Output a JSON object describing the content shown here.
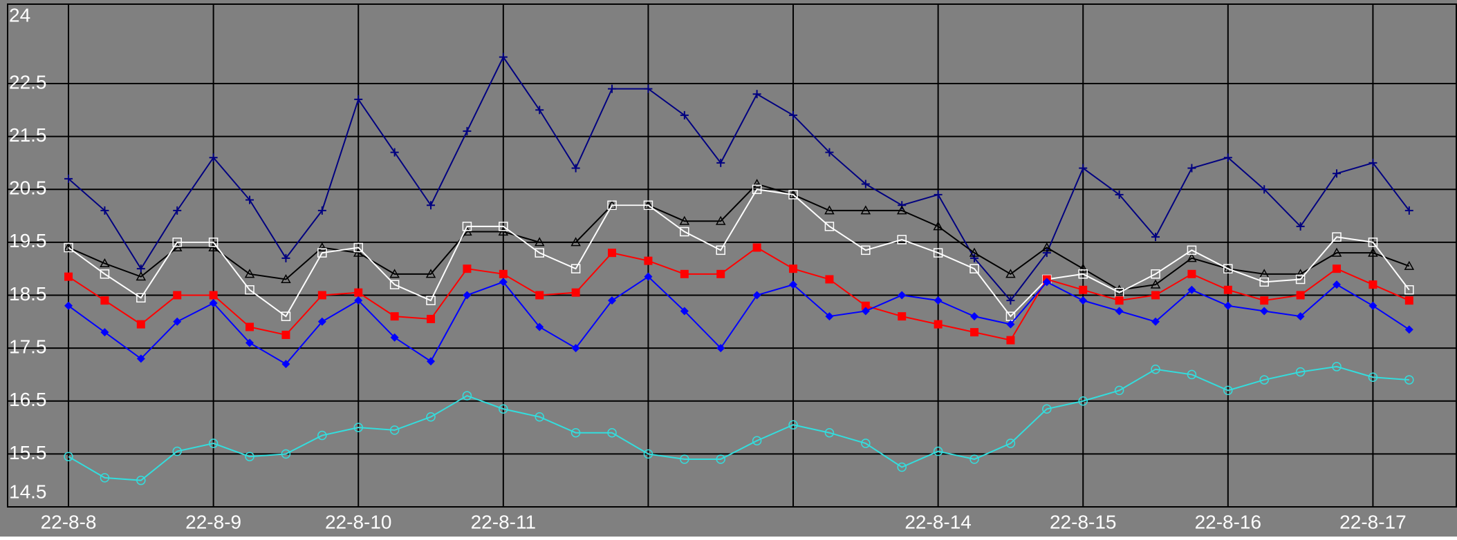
{
  "chart_data": {
    "type": "line",
    "x": [
      0,
      0.25,
      0.5,
      0.75,
      1,
      1.25,
      1.5,
      1.75,
      2,
      2.25,
      2.5,
      2.75,
      3,
      3.25,
      3.5,
      3.75,
      4,
      4.25,
      4.5,
      4.75,
      5,
      5.25,
      5.5,
      5.75,
      6,
      6.25,
      6.5,
      6.75,
      7,
      7.25,
      7.5,
      7.75,
      8,
      8.25,
      8.5,
      8.75,
      9,
      9.25
    ],
    "xlim": [
      -0.42,
      9.58
    ],
    "xticks": [
      {
        "value": 0,
        "label": "22-8-8"
      },
      {
        "value": 1,
        "label": "22-8-9"
      },
      {
        "value": 2,
        "label": "22-8-10"
      },
      {
        "value": 3,
        "label": "22-8-11"
      },
      {
        "value": 4,
        "label": null
      },
      {
        "value": 5,
        "label": null
      },
      {
        "value": 6,
        "label": "22-8-14"
      },
      {
        "value": 7,
        "label": "22-8-15"
      },
      {
        "value": 8,
        "label": "22-8-16"
      },
      {
        "value": 9,
        "label": "22-8-17"
      }
    ],
    "ylim": [
      14.5,
      24
    ],
    "yticks": [
      24,
      22.5,
      21.5,
      20.5,
      19.5,
      18.5,
      17.5,
      16.5,
      15.5,
      14.5
    ],
    "grid": true,
    "series": [
      {
        "color": "#000080",
        "marker": "plus",
        "values": [
          20.7,
          20.1,
          19.0,
          20.1,
          21.1,
          20.3,
          19.2,
          20.1,
          22.2,
          21.2,
          20.2,
          21.6,
          23.0,
          22.0,
          20.9,
          22.4,
          22.4,
          21.9,
          21.0,
          22.3,
          21.9,
          21.2,
          20.6,
          20.2,
          20.4,
          19.2,
          18.4,
          19.3,
          20.9,
          20.4,
          19.6,
          20.9,
          21.1,
          20.5,
          19.8,
          20.8,
          21.0,
          20.1
        ]
      },
      {
        "color": "#000000",
        "marker": "triangle",
        "values": [
          19.4,
          19.1,
          18.85,
          19.4,
          19.4,
          18.9,
          18.8,
          19.4,
          19.3,
          18.9,
          18.9,
          19.7,
          19.7,
          19.5,
          19.5,
          20.2,
          20.2,
          19.9,
          19.9,
          20.6,
          20.4,
          20.1,
          20.1,
          20.1,
          19.8,
          19.3,
          18.9,
          19.4,
          19.0,
          18.6,
          18.7,
          19.2,
          19.0,
          18.9,
          18.9,
          19.3,
          19.3,
          19.05
        ]
      },
      {
        "color": "#ffffff",
        "marker": "square-open",
        "values": [
          19.4,
          18.9,
          18.45,
          19.5,
          19.5,
          18.6,
          18.1,
          19.3,
          19.4,
          18.7,
          18.4,
          19.8,
          19.8,
          19.3,
          19.0,
          20.2,
          20.2,
          19.7,
          19.35,
          20.5,
          20.4,
          19.8,
          19.35,
          19.55,
          19.3,
          19.0,
          18.1,
          18.8,
          18.9,
          18.55,
          18.9,
          19.35,
          19.0,
          18.75,
          18.8,
          19.6,
          19.5,
          18.6
        ]
      },
      {
        "color": "#ff0000",
        "marker": "square",
        "values": [
          18.85,
          18.4,
          17.95,
          18.5,
          18.5,
          17.9,
          17.75,
          18.5,
          18.55,
          18.1,
          18.05,
          19.0,
          18.9,
          18.5,
          18.55,
          19.3,
          19.15,
          18.9,
          18.9,
          19.4,
          19.0,
          18.8,
          18.3,
          18.1,
          17.95,
          17.8,
          17.65,
          18.8,
          18.6,
          18.4,
          18.5,
          18.9,
          18.6,
          18.4,
          18.5,
          19.0,
          18.7,
          18.4
        ]
      },
      {
        "color": "#0000ff",
        "marker": "diamond",
        "values": [
          18.3,
          17.8,
          17.3,
          18.0,
          18.35,
          17.6,
          17.2,
          18.0,
          18.4,
          17.7,
          17.25,
          18.5,
          18.75,
          17.9,
          17.5,
          18.4,
          18.85,
          18.2,
          17.5,
          18.5,
          18.7,
          18.1,
          18.2,
          18.5,
          18.4,
          18.1,
          17.95,
          18.75,
          18.4,
          18.2,
          18.0,
          18.6,
          18.3,
          18.2,
          18.1,
          18.7,
          18.3,
          17.85
        ]
      },
      {
        "color": "#33dddd",
        "marker": "circle",
        "values": [
          15.45,
          15.05,
          15.0,
          15.55,
          15.7,
          15.45,
          15.5,
          15.85,
          16.0,
          15.95,
          16.2,
          16.6,
          16.35,
          16.2,
          15.9,
          15.9,
          15.5,
          15.4,
          15.4,
          15.75,
          16.05,
          15.9,
          15.7,
          15.25,
          15.55,
          15.4,
          15.7,
          16.35,
          16.5,
          16.7,
          17.1,
          17.0,
          16.7,
          16.9,
          17.05,
          17.15,
          16.95,
          16.9
        ]
      }
    ]
  }
}
